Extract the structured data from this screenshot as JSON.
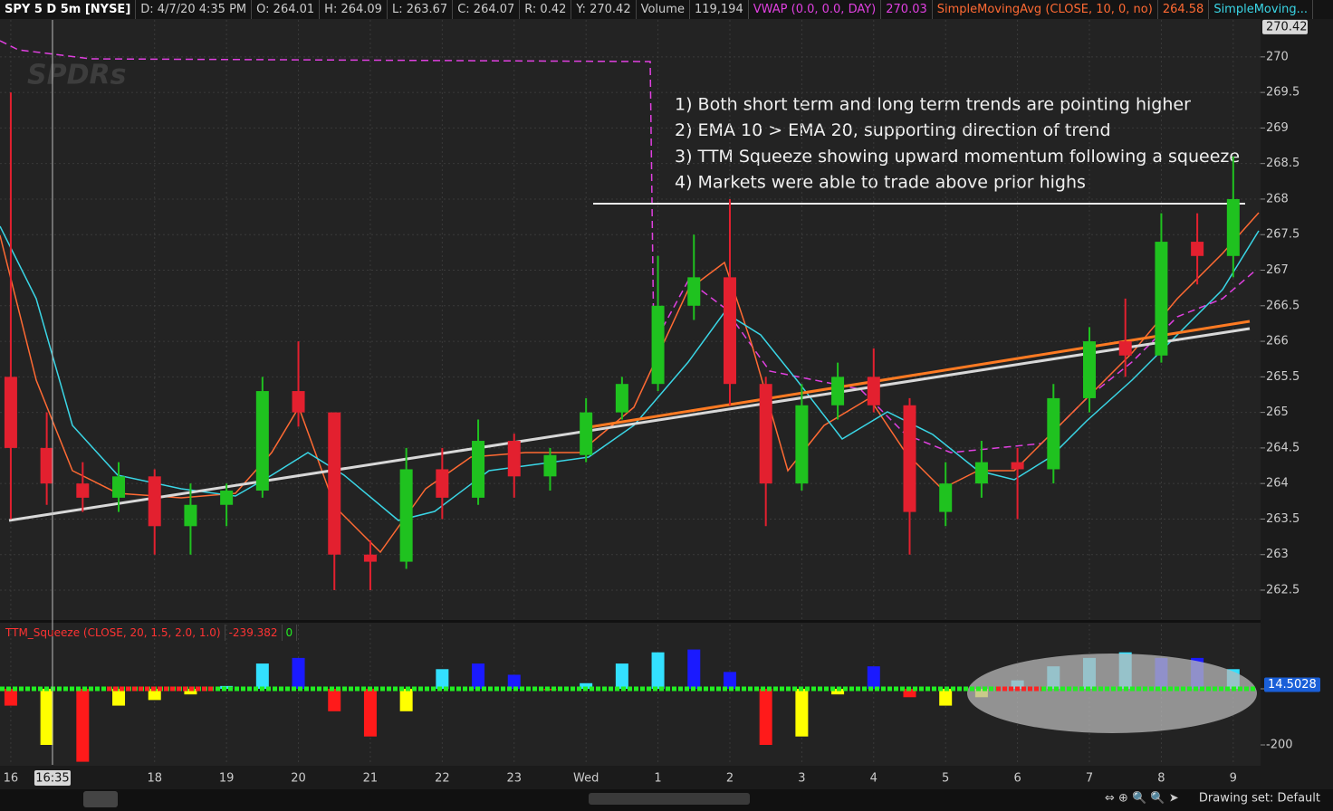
{
  "header": {
    "items": [
      {
        "text": "SPY 5 D 5m [NYSE]",
        "color": "#ffffff"
      },
      {
        "text": "D: 4/7/20 4:35 PM",
        "color": "#cccccc"
      },
      {
        "text": "O: 264.01",
        "color": "#cccccc"
      },
      {
        "text": "H: 264.09",
        "color": "#cccccc"
      },
      {
        "text": "L: 263.67",
        "color": "#cccccc"
      },
      {
        "text": "C: 264.07",
        "color": "#cccccc"
      },
      {
        "text": "R: 0.42",
        "color": "#cccccc"
      },
      {
        "text": "Y: 270.42",
        "color": "#cccccc"
      },
      {
        "text": "Volume",
        "color": "#cccccc"
      },
      {
        "text": "119,194",
        "color": "#cccccc"
      },
      {
        "text": "VWAP (0.0, 0.0, DAY)",
        "color": "#e040e0"
      },
      {
        "text": "270.03",
        "color": "#e040e0"
      },
      {
        "text": "SimpleMovingAvg (CLOSE, 10, 0, no)",
        "color": "#ff6a33"
      },
      {
        "text": "264.58",
        "color": "#ff6a33"
      },
      {
        "text": "SimpleMoving...",
        "color": "#3ad6e6"
      }
    ]
  },
  "watermark": "SPDRs",
  "annotations": [
    "1) Both short term and long term trends are pointing higher",
    "2) EMA 10 > EMA 20, supporting direction of trend",
    "3) TTM Squeeze showing upward momentum following a squeeze",
    "4) Markets were able to trade above prior highs"
  ],
  "chart_data": {
    "type": "candlestick",
    "xlim": [
      -0.15,
      17.38
    ],
    "xticks": [
      {
        "value": 0,
        "label": "16"
      },
      {
        "value": 2,
        "label": "18"
      },
      {
        "value": 3,
        "label": "19"
      },
      {
        "value": 4,
        "label": "20"
      },
      {
        "value": 5,
        "label": "21"
      },
      {
        "value": 6,
        "label": "22"
      },
      {
        "value": 7,
        "label": "23"
      },
      {
        "value": 8,
        "label": "Wed"
      },
      {
        "value": 9,
        "label": "1"
      },
      {
        "value": 10,
        "label": "2"
      },
      {
        "value": 11,
        "label": "3"
      },
      {
        "value": 12,
        "label": "4"
      },
      {
        "value": 13,
        "label": "5"
      },
      {
        "value": 14,
        "label": "6"
      },
      {
        "value": 15,
        "label": "7"
      },
      {
        "value": 16,
        "label": "8"
      },
      {
        "value": 17,
        "label": "9"
      }
    ],
    "cursor": {
      "value": 0.58,
      "label": "16:35"
    },
    "ylim": [
      262.08,
      270.52
    ],
    "yticks": [
      262.5,
      263,
      263.5,
      264,
      264.5,
      265,
      265.5,
      266,
      266.5,
      267,
      267.5,
      268,
      268.5,
      269,
      269.5,
      270
    ],
    "last_price": 270.42,
    "up_color": "#1fc21f",
    "down_color": "#e3202f",
    "grid": true,
    "x": [
      0,
      0.5,
      1,
      1.5,
      2,
      2.5,
      3,
      3.5,
      4,
      4.5,
      5,
      5.5,
      6,
      6.5,
      7,
      7.5,
      8,
      8.5,
      9,
      9.5,
      10,
      10.5,
      11,
      11.5,
      12,
      12.5,
      13,
      13.5,
      14,
      14.5,
      15,
      15.5,
      16,
      16.5,
      17
    ],
    "open": [
      265.5,
      264.5,
      264,
      263.8,
      264.1,
      263.4,
      263.7,
      263.9,
      265.3,
      265,
      263,
      262.9,
      264.2,
      263.8,
      264.6,
      264.1,
      264.4,
      265,
      265.4,
      266.5,
      266.9,
      265.4,
      264,
      265.1,
      265.5,
      265.1,
      263.6,
      264,
      264.3,
      264.2,
      265.2,
      266,
      265.8,
      267.4,
      267.2
    ],
    "high": [
      269.5,
      265,
      264.3,
      264.3,
      264.2,
      264,
      264,
      265.5,
      266,
      265,
      263.2,
      264.5,
      264.5,
      264.9,
      264.7,
      264.5,
      265.2,
      265.5,
      267.2,
      267.5,
      268,
      265.5,
      265.4,
      265.7,
      265.9,
      265.2,
      264.3,
      264.6,
      264.5,
      265.4,
      266.2,
      266.6,
      267.8,
      267.8,
      268.6
    ],
    "low": [
      263.5,
      263.7,
      263.6,
      263.6,
      263,
      263,
      263.4,
      263.8,
      264.8,
      262.5,
      262.5,
      262.8,
      263.5,
      263.7,
      263.8,
      263.9,
      264.3,
      264.9,
      265.3,
      266.3,
      265.1,
      263.4,
      263.9,
      264.9,
      265,
      263,
      263.4,
      263.8,
      263.5,
      264,
      265,
      265.5,
      265.7,
      266.8,
      266.9
    ],
    "close": [
      264.5,
      264,
      263.8,
      264.1,
      263.4,
      263.7,
      263.9,
      265.3,
      265,
      263,
      262.9,
      264.2,
      263.8,
      264.6,
      264.1,
      264.4,
      265,
      265.4,
      266.5,
      266.9,
      265.4,
      264,
      265.1,
      265.5,
      265.1,
      263.6,
      264,
      264.3,
      264.2,
      265.2,
      266,
      265.8,
      267.4,
      267.2,
      268
    ],
    "squeeze": {
      "title": "TTM_Squeeze (CLOSE, 20, 1.5, 2.0, 1.0)",
      "readout": "-239.382",
      "readout2": "0",
      "last_value": 14.5028,
      "ylim": [
        -271,
        229
      ],
      "yticks": [
        -200,
        0
      ],
      "values": [
        -60,
        -200,
        -260,
        -60,
        -40,
        -20,
        10,
        90,
        110,
        -80,
        -170,
        -80,
        70,
        90,
        50,
        -5,
        20,
        90,
        130,
        140,
        60,
        -200,
        -170,
        -20,
        80,
        -30,
        -60,
        -30,
        30,
        80,
        110,
        130,
        110,
        110,
        70
      ],
      "colors": [
        "#ff1a1a",
        "#ffff00",
        "#ff1a1a",
        "#ffff00",
        "#ffff00",
        "#ffff00",
        "#33e0ff",
        "#33e0ff",
        "#1a1aff",
        "#ff1a1a",
        "#ff1a1a",
        "#ffff00",
        "#33e0ff",
        "#1a1aff",
        "#1a1aff",
        "#ff1a1a",
        "#33e0ff",
        "#33e0ff",
        "#33e0ff",
        "#1a1aff",
        "#1a1aff",
        "#ff1a1a",
        "#ffff00",
        "#ffff00",
        "#1a1aff",
        "#ff1a1a",
        "#ffff00",
        "#ffff00",
        "#33e0ff",
        "#33e0ff",
        "#33e0ff",
        "#33e0ff",
        "#1a1aff",
        "#1a1aff",
        "#33e0ff"
      ]
    }
  },
  "footer": {
    "drawing_set": "Drawing set: Default"
  }
}
